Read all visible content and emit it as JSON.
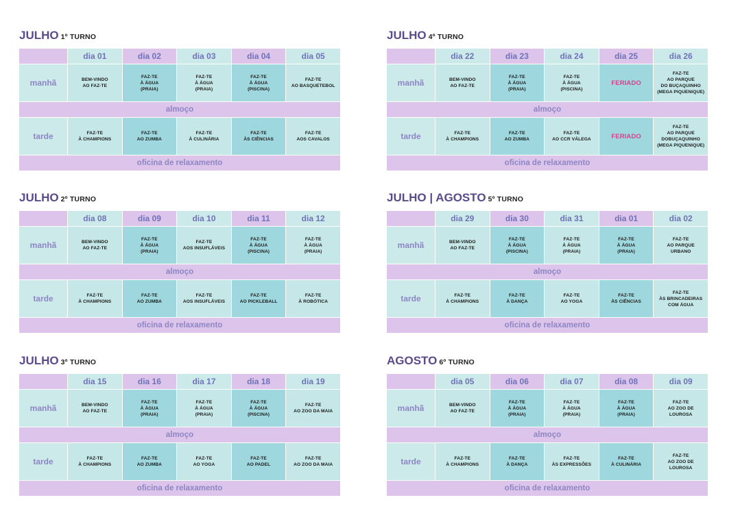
{
  "labels": {
    "manha": "manhã",
    "tarde": "tarde",
    "almoco": "almoço",
    "oficina": "oficina de relaxamento"
  },
  "colors": {
    "title": "#5b4a8c",
    "lavender": "#dcc4ea",
    "mint": "#cdeaea",
    "teal": "#9fd7de",
    "header_text": "#6f72b8",
    "feriado": "#d83f8f"
  },
  "turnos": [
    {
      "month": "JULHO",
      "turno": "1º TURNO",
      "days": [
        "dia 01",
        "dia 02",
        "dia 03",
        "dia 04",
        "dia 05"
      ],
      "morning": [
        "BEM-VINDO\nAO FAZ-TE",
        "FAZ-TE\nÀ ÁGUA\n(PRAIA)",
        "FAZ-TE\nÀ ÁGUA\n(PRAIA)",
        "FAZ-TE\nÀ ÁGUA\n(PISCINA)",
        "FAZ-TE\nAO BASQUETEBOL"
      ],
      "afternoon": [
        "FAZ-TE\nÀ CHAMPIONS",
        "FAZ-TE\nAO ZUMBA",
        "FAZ-TE\nÀ CULINÁRIA",
        "FAZ-TE\nÀS CIÊNCIAS",
        "FAZ-TE\nAOS CAVALOS"
      ]
    },
    {
      "month": "JULHO",
      "turno": "2º TURNO",
      "days": [
        "dia 08",
        "dia 09",
        "dia 10",
        "dia 11",
        "dia 12"
      ],
      "morning": [
        "BEM-VINDO\nAO FAZ-TE",
        "FAZ-TE\nÀ ÁGUA\n(PRAIA)",
        "FAZ-TE\nAOS INSUFLÁVEIS",
        "FAZ-TE\nÀ ÁGUA\n(PISCINA)",
        "FAZ-TE\nÀ ÁGUA\n(PRAIA)"
      ],
      "afternoon": [
        "FAZ-TE\nÀ CHAMPIONS",
        "FAZ-TE\nAO ZUMBA",
        "FAZ-TE\nAOS INSUFLÁVEIS",
        "FAZ-TE\nAO PICKLEBALL",
        "FAZ-TE\nÀ ROBÓTICA"
      ]
    },
    {
      "month": "JULHO",
      "turno": "3º TURNO",
      "days": [
        "dia 15",
        "dia 16",
        "dia 17",
        "dia 18",
        "dia 19"
      ],
      "morning": [
        "BEM-VINDO\nAO FAZ-TE",
        "FAZ-TE\nÀ ÁGUA\n(PRAIA)",
        "FAZ-TE\nÀ ÁGUA\n(PRAIA)",
        "FAZ-TE\nÀ ÁGUA\n(PISCINA)",
        "FAZ-TE\nAO ZOO DA MAIA"
      ],
      "afternoon": [
        "FAZ-TE\nÀ CHAMPIONS",
        "FAZ-TE\nAO ZUMBA",
        "FAZ-TE\nAO YOGA",
        "FAZ-TE\nAO PADEL",
        "FAZ-TE\nAO ZOO DA MAIA"
      ]
    },
    {
      "month": "JULHO",
      "turno": "4º TURNO",
      "days": [
        "dia 22",
        "dia 23",
        "dia 24",
        "dia 25",
        "dia 26"
      ],
      "morning": [
        "BEM-VINDO\nAO FAZ-TE",
        "FAZ-TE\nÀ ÁGUA\n(PRAIA)",
        "FAZ-TE\nÀ ÁGUA\n(PISCINA)",
        "FERIADO",
        "FAZ-TE\nAO PARQUE\nDO BUÇAQUINHO\n(MEGA PIQUENIQUE)"
      ],
      "afternoon": [
        "FAZ-TE\nÀ CHAMPIONS",
        "FAZ-TE\nAO ZUMBA",
        "FAZ-TE\nAO CCR VÁLEGA",
        "FERIADO",
        "FAZ-TE\nAO PARQUE\nDOBUÇAQUINHO\n(MEGA PIQUENIQUE)"
      ]
    },
    {
      "month": "JULHO | AGOSTO",
      "turno": "5º TURNO",
      "days": [
        "dia 29",
        "dia 30",
        "dia 31",
        "dia 01",
        "dia 02"
      ],
      "morning": [
        "BEM-VINDO\nAO FAZ-TE",
        "FAZ-TE\nÀ ÁGUA\n(PISCINA)",
        "FAZ-TE\nÀ ÁGUA\n(PRAIA)",
        "FAZ-TE\nÀ ÁGUA\n(PRAIA)",
        "FAZ-TE\nAO PARQUE\nURBANO"
      ],
      "afternoon": [
        "FAZ-TE\nÀ CHAMPIONS",
        "FAZ-TE\nÀ DANÇA",
        "FAZ-TE\nAO YOGA",
        "FAZ-TE\nÀS CIÊNCIAS",
        "FAZ-TE\nÀS BRINCADEIRAS\nCOM ÁGUA"
      ]
    },
    {
      "month": "AGOSTO",
      "turno": "6º TURNO",
      "days": [
        "dia 05",
        "dia 06",
        "dia 07",
        "dia 08",
        "dia 09"
      ],
      "morning": [
        "BEM-VINDO\nAO FAZ-TE",
        "FAZ-TE\nÀ ÁGUA\n(PRAIA)",
        "FAZ-TE\nÀ ÁGUA\n(PRAIA)",
        "FAZ-TE\nÀ ÁGUA\n(PRAIA)",
        "FAZ-TE\nAO ZOO DE\nLOUROSA"
      ],
      "afternoon": [
        "FAZ-TE\nÀ CHAMPIONS",
        "FAZ-TE\nÀ DANÇA",
        "FAZ-TE\nÀS EXPRESSÕES",
        "FAZ-TE\nÀ CULINÁRIA",
        "FAZ-TE\nAO ZOO DE\nLOUROSA"
      ]
    }
  ]
}
